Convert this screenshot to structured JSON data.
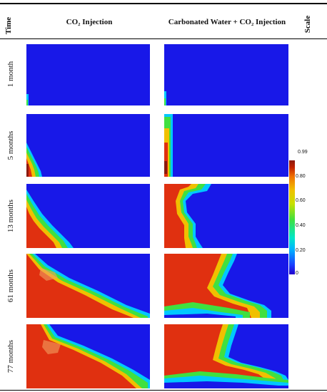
{
  "headers": {
    "time": "Time",
    "col1": "CO₂ Injection",
    "col2": "Carbonated Water + CO₂ Injection",
    "scale": "Scale"
  },
  "rows": [
    {
      "label": "1 month"
    },
    {
      "label": "5 months"
    },
    {
      "label": "13 months"
    },
    {
      "label": "61 months"
    },
    {
      "label": "77 months"
    }
  ],
  "colorbar": {
    "ticks": [
      "0.99",
      "0.80",
      "0.60",
      "0.40",
      "0.20",
      "0"
    ],
    "colors": [
      "#8b1a10",
      "#e03010",
      "#f0c000",
      "#40e040",
      "#00c8ff",
      "#1818e8"
    ]
  }
}
